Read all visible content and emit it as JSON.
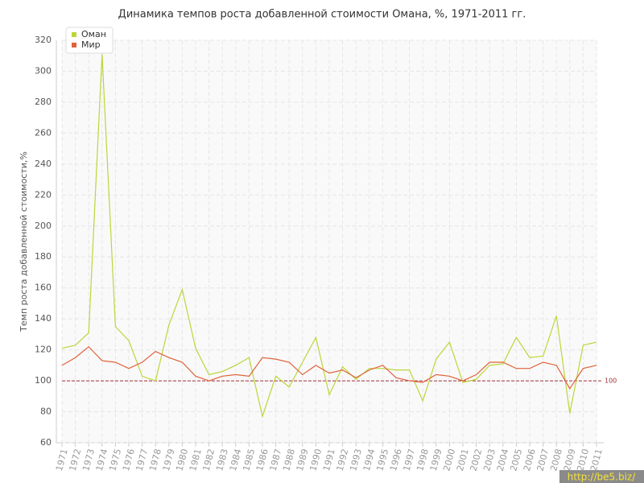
{
  "chart_data": {
    "type": "line",
    "title": "Динамика темпов роста добавленной стоимости Омана, %, 1971-2011 гг.",
    "y_label": "Темп роста добавленной стоимости,%",
    "categories": [
      "1971",
      "1972",
      "1973",
      "1974",
      "1975",
      "1976",
      "1977",
      "1978",
      "1979",
      "1980",
      "1981",
      "1982",
      "1983",
      "1984",
      "1985",
      "1986",
      "1987",
      "1988",
      "1989",
      "1990",
      "1991",
      "1992",
      "1993",
      "1994",
      "1995",
      "1996",
      "1997",
      "1998",
      "1999",
      "2000",
      "2001",
      "2002",
      "2003",
      "2004",
      "2005",
      "2006",
      "2007",
      "2008",
      "2009",
      "2010",
      "2011"
    ],
    "series": [
      {
        "name": "Оман",
        "color": "#bcd63a",
        "values": [
          121,
          123,
          131,
          311,
          135,
          126,
          103,
          100,
          136,
          159,
          121,
          104,
          106,
          110,
          115,
          77,
          103,
          96,
          112,
          128,
          91,
          109,
          101,
          108,
          108,
          107,
          107,
          87,
          114,
          125,
          99,
          101,
          110,
          111,
          128,
          115,
          116,
          142,
          79,
          123,
          125
        ]
      },
      {
        "name": "Мир",
        "color": "#e0623a",
        "values": [
          110,
          115,
          122,
          113,
          112,
          108,
          112,
          119,
          115,
          112,
          103,
          100,
          103,
          104,
          103,
          115,
          114,
          112,
          104,
          110,
          105,
          107,
          102,
          107,
          110,
          102,
          100,
          99,
          104,
          103,
          100,
          104,
          112,
          112,
          108,
          108,
          112,
          110,
          95,
          108,
          110
        ]
      }
    ],
    "ylim": [
      60,
      320
    ],
    "yticks": [
      60,
      80,
      100,
      120,
      140,
      160,
      180,
      200,
      220,
      240,
      260,
      280,
      300,
      320
    ],
    "grid": true,
    "legend": "top-left",
    "reference_lines": [
      100
    ],
    "reference_color": "#a0303a",
    "watermark": "http://be5.biz/"
  }
}
